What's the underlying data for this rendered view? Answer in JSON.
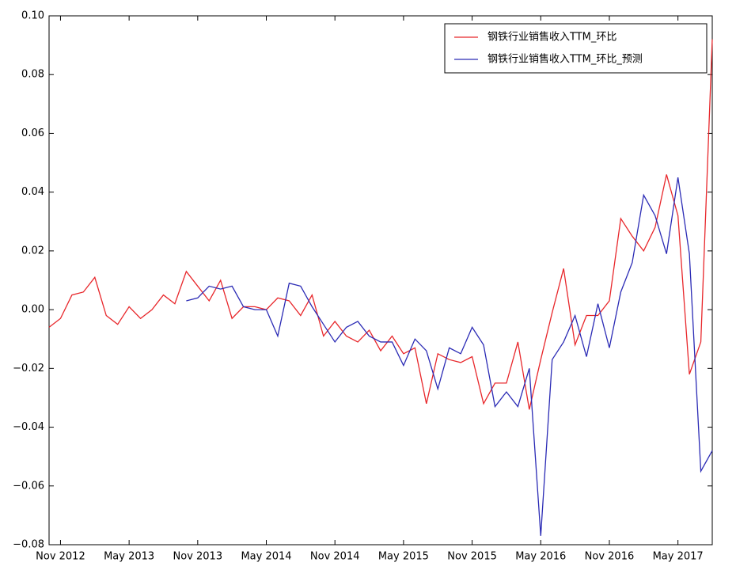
{
  "chart_data": {
    "type": "line",
    "categories": [
      null,
      "Nov 2012",
      null,
      null,
      null,
      null,
      null,
      "May 2013",
      null,
      null,
      null,
      null,
      null,
      "Nov 2013",
      null,
      null,
      null,
      null,
      null,
      "May 2014",
      null,
      null,
      null,
      null,
      null,
      "Nov 2014",
      null,
      null,
      null,
      null,
      null,
      "May 2015",
      null,
      null,
      null,
      null,
      null,
      "Nov 2015",
      null,
      null,
      null,
      null,
      null,
      "May 2016",
      null,
      null,
      null,
      null,
      null,
      "Nov 2016",
      null,
      null,
      null,
      null,
      null,
      "May 2017",
      null,
      null,
      null
    ],
    "series": [
      {
        "name": "钢铁行业销售收入TTM_环比",
        "color": "#e8272b",
        "values": [
          -0.006,
          -0.003,
          0.005,
          0.006,
          0.011,
          -0.002,
          -0.005,
          0.001,
          -0.003,
          0.0,
          0.005,
          0.002,
          0.013,
          0.008,
          0.003,
          0.01,
          -0.003,
          0.001,
          0.001,
          0.0,
          0.004,
          0.003,
          -0.002,
          0.005,
          -0.009,
          -0.004,
          -0.009,
          -0.011,
          -0.007,
          -0.014,
          -0.009,
          -0.015,
          -0.013,
          -0.032,
          -0.015,
          -0.017,
          -0.018,
          -0.016,
          -0.032,
          -0.025,
          -0.025,
          -0.011,
          -0.034,
          -0.017,
          -0.001,
          0.014,
          -0.012,
          -0.002,
          -0.002,
          0.003,
          0.031,
          0.025,
          0.02,
          0.028,
          0.046,
          0.032,
          -0.022,
          -0.011,
          0.092
        ]
      },
      {
        "name": "钢铁行业销售收入TTM_环比_预测",
        "color": "#2b2bb5",
        "values": [
          null,
          null,
          null,
          null,
          null,
          null,
          null,
          null,
          null,
          null,
          null,
          null,
          0.003,
          0.004,
          0.008,
          0.007,
          0.008,
          0.001,
          0.0,
          0.0,
          -0.009,
          0.009,
          0.008,
          0.001,
          -0.005,
          -0.011,
          -0.006,
          -0.004,
          -0.009,
          -0.011,
          -0.011,
          -0.019,
          -0.01,
          -0.014,
          -0.027,
          -0.013,
          -0.015,
          -0.006,
          -0.012,
          -0.033,
          -0.028,
          -0.033,
          -0.02,
          -0.077,
          -0.017,
          -0.011,
          -0.002,
          -0.016,
          0.002,
          -0.013,
          0.006,
          0.016,
          0.039,
          0.032,
          0.019,
          0.045,
          0.019,
          -0.055,
          -0.048
        ]
      }
    ],
    "ylim": [
      -0.08,
      0.1
    ],
    "yticks": [
      {
        "value": 0.1,
        "label": "0.10"
      },
      0.08,
      0.06,
      0.04,
      0.02,
      {
        "value": 0.0,
        "label": "0.00"
      },
      {
        "value": -0.02,
        "label": "−0.02"
      },
      {
        "value": -0.04,
        "label": "−0.04"
      },
      {
        "value": -0.06,
        "label": "−0.06"
      },
      {
        "value": -0.08,
        "label": "−0.08"
      }
    ],
    "legend": "upper right"
  }
}
